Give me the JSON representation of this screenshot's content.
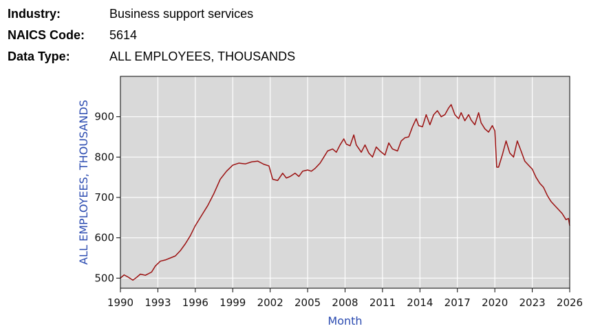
{
  "header": {
    "industry_label": "Industry:",
    "industry_value": "Business support services",
    "naics_label": "NAICS Code:",
    "naics_value": "5614",
    "datatype_label": "Data Type:",
    "datatype_value": "ALL EMPLOYEES, THOUSANDS"
  },
  "chart_data": {
    "type": "line",
    "xlabel": "Month",
    "ylabel": "ALL EMPLOYEES, THOUSANDS",
    "xlim": [
      1990,
      2026
    ],
    "ylim": [
      475,
      1000
    ],
    "x_ticks": [
      1990,
      1993,
      1996,
      1999,
      2002,
      2005,
      2008,
      2011,
      2014,
      2017,
      2020,
      2023,
      2026
    ],
    "y_ticks": [
      500,
      600,
      700,
      800,
      900
    ],
    "grid": true,
    "colors": {
      "plot_bg": "#d9d9d9",
      "line": "#9b0f0f",
      "grid": "#ffffff",
      "axis_title": "#2a4ab0"
    },
    "series": [
      {
        "x": [
          1990.0,
          1990.3,
          1990.6,
          1991.0,
          1991.3,
          1991.6,
          1992.0,
          1992.5,
          1992.8,
          1993.2,
          1993.6,
          1994.0,
          1994.4,
          1994.8,
          1995.2,
          1995.6,
          1996.0,
          1996.5,
          1997.0,
          1997.5,
          1998.0,
          1998.5,
          1999.0,
          1999.5,
          2000.0,
          2000.5,
          2001.0,
          2001.5,
          2001.9,
          2002.2,
          2002.6,
          2003.0,
          2003.3,
          2003.6,
          2004.0,
          2004.3,
          2004.6,
          2005.0,
          2005.3,
          2005.6,
          2006.0,
          2006.3,
          2006.6,
          2007.0,
          2007.3,
          2007.6,
          2007.9,
          2008.1,
          2008.4,
          2008.7,
          2008.9,
          2009.3,
          2009.6,
          2009.9,
          2010.2,
          2010.5,
          2010.8,
          2011.2,
          2011.5,
          2011.8,
          2012.2,
          2012.5,
          2012.8,
          2013.1,
          2013.4,
          2013.7,
          2013.9,
          2014.2,
          2014.5,
          2014.8,
          2015.1,
          2015.4,
          2015.7,
          2016.0,
          2016.3,
          2016.5,
          2016.8,
          2017.1,
          2017.3,
          2017.6,
          2017.9,
          2018.1,
          2018.4,
          2018.7,
          2018.9,
          2019.2,
          2019.5,
          2019.8,
          2020.0,
          2020.15,
          2020.3,
          2020.6,
          2020.9,
          2021.2,
          2021.5,
          2021.8,
          2022.1,
          2022.4,
          2022.7,
          2023.0,
          2023.3,
          2023.6,
          2023.9,
          2024.2,
          2024.5,
          2024.8,
          2025.1,
          2025.4,
          2025.7,
          2025.9,
          2026.0
        ],
        "y": [
          500,
          508,
          503,
          495,
          502,
          510,
          507,
          515,
          530,
          542,
          545,
          550,
          555,
          568,
          585,
          605,
          630,
          655,
          680,
          710,
          745,
          765,
          780,
          785,
          783,
          788,
          790,
          782,
          778,
          745,
          742,
          760,
          748,
          752,
          760,
          752,
          765,
          768,
          765,
          772,
          785,
          800,
          815,
          820,
          812,
          830,
          845,
          832,
          828,
          855,
          830,
          812,
          830,
          810,
          800,
          825,
          815,
          805,
          835,
          820,
          815,
          840,
          848,
          850,
          875,
          895,
          878,
          875,
          905,
          880,
          905,
          915,
          900,
          905,
          922,
          930,
          905,
          895,
          910,
          890,
          905,
          892,
          880,
          910,
          885,
          870,
          862,
          878,
          865,
          775,
          775,
          805,
          840,
          810,
          800,
          840,
          815,
          790,
          780,
          770,
          750,
          735,
          725,
          705,
          690,
          680,
          670,
          660,
          645,
          648,
          630
        ]
      }
    ]
  }
}
